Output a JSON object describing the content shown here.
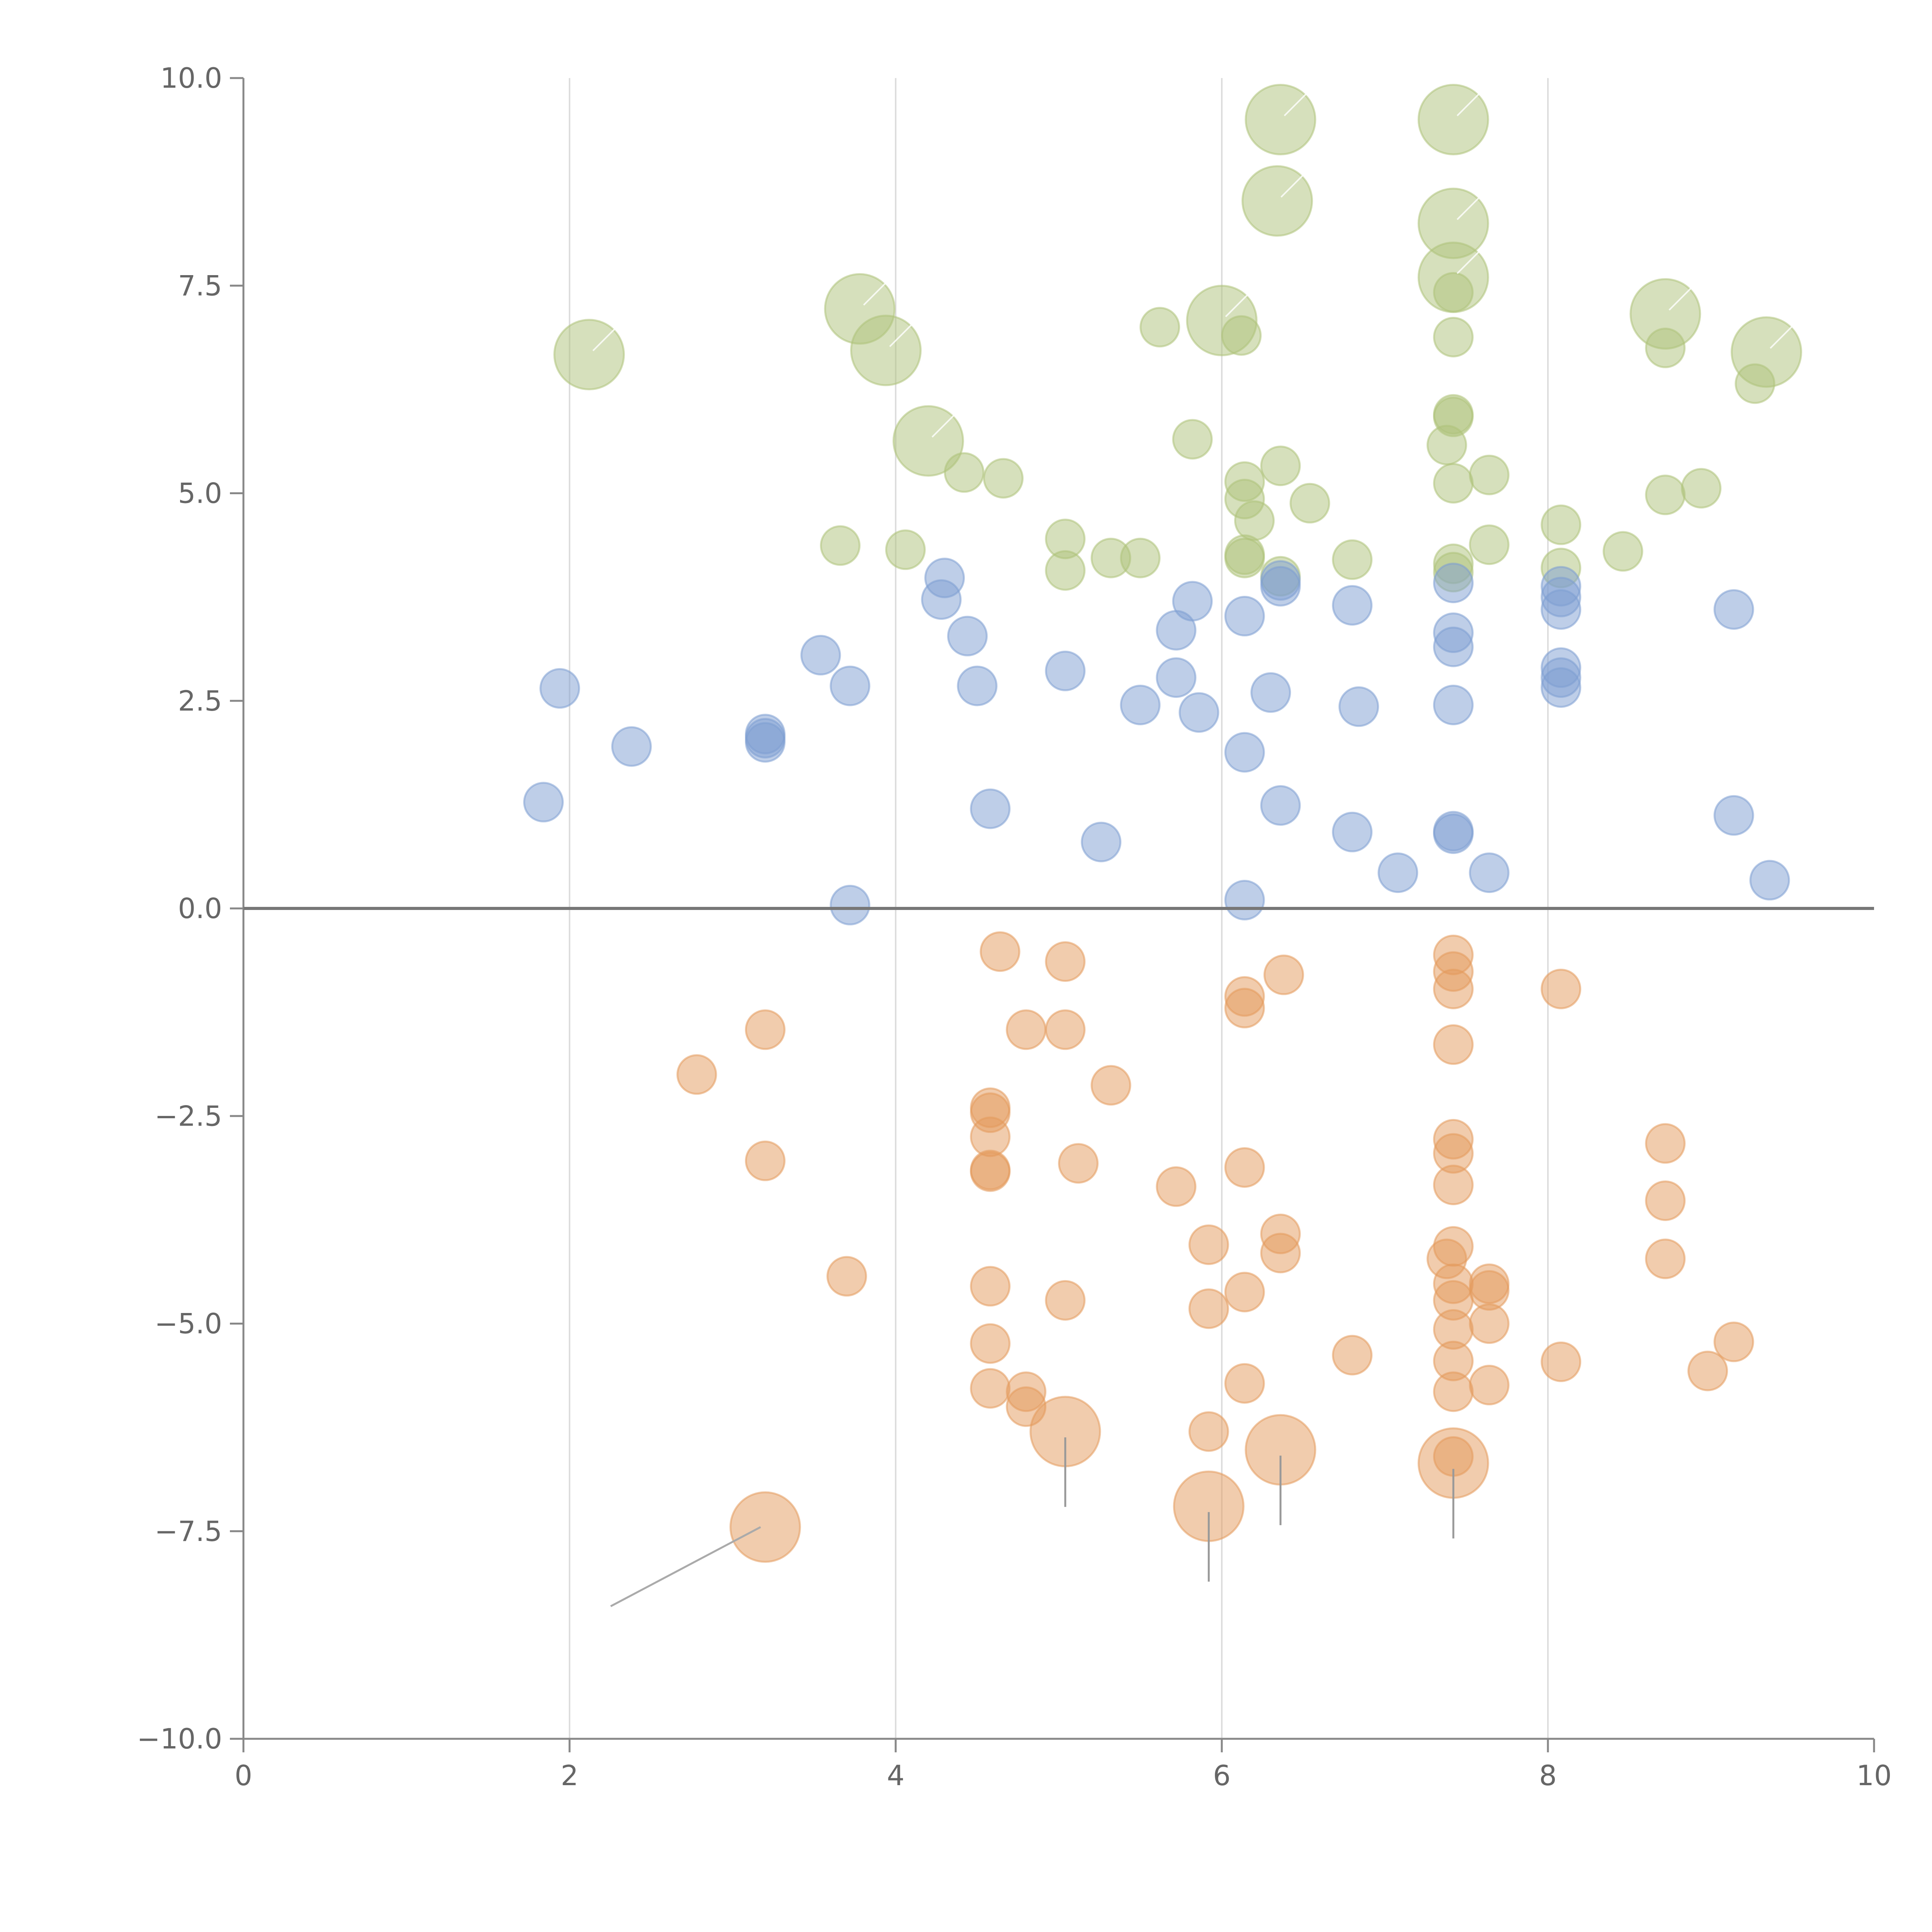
{
  "chart_data": {
    "type": "scatter",
    "title": "",
    "xlabel": "",
    "ylabel": "",
    "xlim": [
      0,
      10
    ],
    "ylim": [
      -10,
      10
    ],
    "x_ticks": [
      0,
      2,
      4,
      6,
      8,
      10
    ],
    "y_ticks": [
      -10,
      -7.5,
      -5,
      -2.5,
      0,
      2.5,
      5,
      7.5,
      10
    ],
    "x_tick_labels": [
      "0",
      "2",
      "4",
      "6",
      "8",
      "10"
    ],
    "y_tick_labels": [
      "−10.0",
      "−7.5",
      "−5.0",
      "−2.5",
      "0.0",
      "2.5",
      "5.0",
      "7.5",
      "10.0"
    ],
    "grid": "vertical",
    "zero_line": true,
    "series": [
      {
        "color": "#aec27a",
        "point_size": "small",
        "points": [
          [
            5.62,
            7.0
          ],
          [
            6.12,
            6.9
          ],
          [
            7.42,
            6.88
          ],
          [
            8.72,
            6.75
          ],
          [
            9.27,
            6.32
          ],
          [
            7.42,
            7.42
          ],
          [
            7.42,
            5.95
          ],
          [
            7.42,
            5.92
          ],
          [
            7.38,
            5.58
          ],
          [
            5.82,
            5.65
          ],
          [
            4.42,
            5.25
          ],
          [
            4.66,
            5.18
          ],
          [
            6.14,
            5.14
          ],
          [
            6.36,
            5.33
          ],
          [
            7.42,
            5.12
          ],
          [
            7.64,
            5.22
          ],
          [
            6.14,
            4.93
          ],
          [
            6.54,
            4.88
          ],
          [
            6.2,
            4.67
          ],
          [
            8.72,
            4.98
          ],
          [
            8.94,
            5.06
          ],
          [
            5.04,
            4.45
          ],
          [
            8.08,
            4.62
          ],
          [
            3.66,
            4.37
          ],
          [
            4.06,
            4.32
          ],
          [
            5.32,
            4.22
          ],
          [
            5.5,
            4.22
          ],
          [
            6.14,
            4.22
          ],
          [
            6.14,
            4.26
          ],
          [
            6.36,
            4.0
          ],
          [
            6.8,
            4.2
          ],
          [
            7.42,
            4.15
          ],
          [
            7.42,
            4.05
          ],
          [
            7.64,
            4.38
          ],
          [
            8.08,
            4.1
          ],
          [
            8.46,
            4.3
          ],
          [
            5.04,
            4.07
          ]
        ]
      },
      {
        "color": "#aec27a",
        "point_size": "large",
        "points": [
          [
            6.36,
            9.5
          ],
          [
            7.42,
            9.5
          ],
          [
            6.34,
            8.52
          ],
          [
            7.42,
            8.25
          ],
          [
            7.42,
            7.6
          ],
          [
            3.78,
            7.22
          ],
          [
            3.94,
            6.72
          ],
          [
            2.12,
            6.67
          ],
          [
            6.0,
            7.08
          ],
          [
            8.72,
            7.16
          ],
          [
            9.34,
            6.7
          ],
          [
            4.2,
            5.63
          ]
        ]
      },
      {
        "color": "#7d9ed1",
        "point_size": "small",
        "points": [
          [
            4.3,
            3.98
          ],
          [
            4.28,
            3.72
          ],
          [
            4.44,
            3.28
          ],
          [
            3.54,
            3.05
          ],
          [
            3.72,
            2.68
          ],
          [
            4.5,
            2.68
          ],
          [
            5.04,
            2.86
          ],
          [
            5.82,
            3.7
          ],
          [
            5.72,
            3.35
          ],
          [
            5.72,
            2.78
          ],
          [
            5.5,
            2.45
          ],
          [
            5.86,
            2.36
          ],
          [
            6.14,
            3.52
          ],
          [
            6.36,
            3.95
          ],
          [
            6.36,
            3.88
          ],
          [
            6.3,
            2.6
          ],
          [
            6.8,
            3.65
          ],
          [
            6.84,
            2.43
          ],
          [
            7.42,
            3.92
          ],
          [
            7.42,
            3.32
          ],
          [
            7.42,
            3.15
          ],
          [
            7.42,
            2.45
          ],
          [
            8.08,
            3.88
          ],
          [
            8.08,
            3.75
          ],
          [
            8.08,
            3.6
          ],
          [
            8.08,
            2.9
          ],
          [
            8.08,
            2.78
          ],
          [
            8.08,
            2.66
          ],
          [
            9.14,
            3.6
          ],
          [
            1.94,
            2.65
          ],
          [
            2.38,
            1.95
          ],
          [
            3.2,
            2.1
          ],
          [
            3.2,
            2.05
          ],
          [
            3.2,
            2.0
          ],
          [
            1.84,
            1.28
          ],
          [
            6.14,
            1.88
          ],
          [
            4.58,
            1.2
          ],
          [
            5.26,
            0.8
          ],
          [
            6.36,
            1.24
          ],
          [
            6.8,
            0.92
          ],
          [
            7.42,
            0.93
          ],
          [
            7.42,
            0.9
          ],
          [
            7.08,
            0.43
          ],
          [
            7.64,
            0.43
          ],
          [
            9.14,
            1.12
          ],
          [
            9.36,
            0.34
          ],
          [
            3.72,
            0.04
          ],
          [
            6.14,
            0.1
          ]
        ]
      },
      {
        "color": "#e39a5c",
        "point_size": "small",
        "points": [
          [
            4.64,
            -0.52
          ],
          [
            5.04,
            -0.64
          ],
          [
            6.14,
            -1.06
          ],
          [
            6.14,
            -1.2
          ],
          [
            6.38,
            -0.8
          ],
          [
            7.42,
            -0.56
          ],
          [
            7.42,
            -0.76
          ],
          [
            7.42,
            -0.97
          ],
          [
            8.08,
            -0.97
          ],
          [
            3.2,
            -1.46
          ],
          [
            4.8,
            -1.46
          ],
          [
            5.04,
            -1.46
          ],
          [
            2.78,
            -2.0
          ],
          [
            7.42,
            -1.64
          ],
          [
            5.32,
            -2.13
          ],
          [
            4.58,
            -2.4
          ],
          [
            4.58,
            -2.46
          ],
          [
            4.58,
            -2.75
          ],
          [
            4.58,
            -3.15
          ],
          [
            4.58,
            -3.17
          ],
          [
            3.2,
            -3.04
          ],
          [
            5.12,
            -3.07
          ],
          [
            5.72,
            -3.35
          ],
          [
            6.14,
            -3.12
          ],
          [
            7.42,
            -2.78
          ],
          [
            7.42,
            -2.95
          ],
          [
            7.42,
            -3.33
          ],
          [
            8.72,
            -2.83
          ],
          [
            8.72,
            -3.52
          ],
          [
            3.7,
            -4.43
          ],
          [
            5.92,
            -4.05
          ],
          [
            6.36,
            -3.92
          ],
          [
            6.36,
            -4.15
          ],
          [
            7.42,
            -4.07
          ],
          [
            7.38,
            -4.22
          ],
          [
            7.42,
            -4.52
          ],
          [
            7.42,
            -4.72
          ],
          [
            7.64,
            -4.52
          ],
          [
            7.64,
            -4.6
          ],
          [
            8.72,
            -4.22
          ],
          [
            4.58,
            -4.55
          ],
          [
            5.04,
            -4.72
          ],
          [
            5.92,
            -4.82
          ],
          [
            6.14,
            -4.62
          ],
          [
            7.42,
            -5.07
          ],
          [
            7.64,
            -5.0
          ],
          [
            4.58,
            -5.24
          ],
          [
            4.58,
            -5.78
          ],
          [
            4.8,
            -5.82
          ],
          [
            4.8,
            -6.0
          ],
          [
            5.92,
            -6.3
          ],
          [
            6.14,
            -5.72
          ],
          [
            6.8,
            -5.38
          ],
          [
            7.42,
            -5.45
          ],
          [
            7.42,
            -5.82
          ],
          [
            7.64,
            -5.74
          ],
          [
            8.08,
            -5.46
          ],
          [
            9.14,
            -5.22
          ],
          [
            8.98,
            -5.57
          ],
          [
            7.42,
            -6.6
          ]
        ]
      },
      {
        "color": "#e39a5c",
        "point_size": "large",
        "points": [
          [
            5.04,
            -6.3
          ],
          [
            6.36,
            -6.52
          ],
          [
            7.42,
            -6.68
          ],
          [
            5.92,
            -7.2
          ],
          [
            3.2,
            -7.45
          ]
        ]
      }
    ]
  }
}
